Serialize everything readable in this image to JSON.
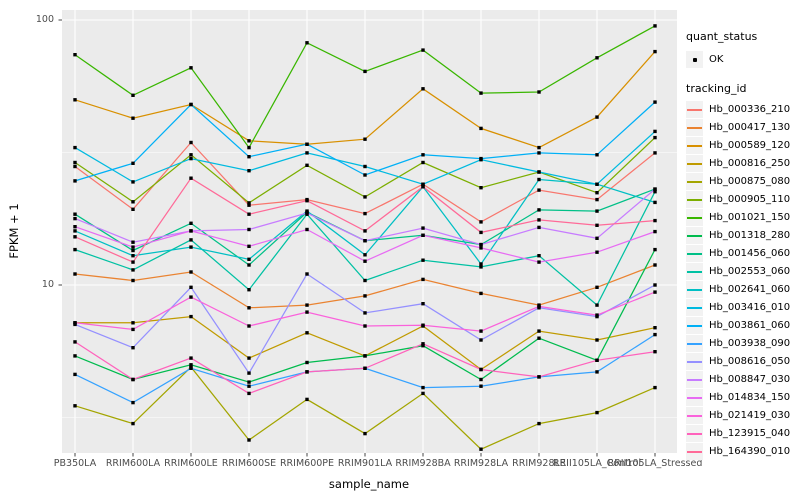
{
  "figure": {
    "background": "#FFFFFF",
    "panel_background": "#EBEBEB",
    "gridline_color": "#FFFFFF",
    "tick_mark_color": "#333333",
    "axis_text_color": "#4D4D4D",
    "title_text_color": "#000000",
    "point_color": "#000000"
  },
  "chart_data": {
    "type": "line",
    "title": "",
    "xlabel": "sample_name",
    "ylabel": "FPKM + 1",
    "y_scale": "log10",
    "y_ticks": [
      10,
      100
    ],
    "y_tick_labels": [
      "10",
      "100"
    ],
    "y_minor_ticks": [
      3.162,
      31.62
    ],
    "ylim": [
      2.3,
      110
    ],
    "grid": "white major and minor gridlines on gray panel",
    "legend_position": "right",
    "point_marker": "small black square",
    "categories": [
      "PB350LA",
      "RRIM600LA",
      "RRIM600LE",
      "RRIM600SE",
      "RRIM600PE",
      "RRIM901LA",
      "RRIM928BA",
      "RRIM928LA",
      "RRIM928LE",
      "RRII105LA_Control",
      "RRII105LA_Stressed"
    ],
    "series": [
      {
        "name": "Hb_000336_210",
        "color": "#F8766D",
        "values": [
          28,
          19.3,
          34.5,
          20,
          21,
          18.6,
          24,
          17.3,
          22.8,
          21,
          31.5
        ]
      },
      {
        "name": "Hb_000417_130",
        "color": "#EA8331",
        "values": [
          11,
          10.4,
          11.2,
          8.2,
          8.4,
          9.1,
          10.5,
          9.3,
          8.4,
          9.8,
          11.9
        ]
      },
      {
        "name": "Hb_000589_120",
        "color": "#D89000",
        "values": [
          50,
          42.6,
          48,
          35,
          34,
          35.5,
          55,
          39,
          33,
          43,
          76
        ]
      },
      {
        "name": "Hb_000816_250",
        "color": "#C09B00",
        "values": [
          7.2,
          7.2,
          7.6,
          5.3,
          6.6,
          5.4,
          7.0,
          4.8,
          6.7,
          6.2,
          6.9
        ]
      },
      {
        "name": "Hb_000875_080",
        "color": "#A3A500",
        "values": [
          3.5,
          3.0,
          4.9,
          2.6,
          3.7,
          2.75,
          3.9,
          2.4,
          3.0,
          3.3,
          4.1
        ]
      },
      {
        "name": "Hb_000905_110",
        "color": "#7CAE00",
        "values": [
          29,
          20.6,
          31,
          20.4,
          28.3,
          21.5,
          29,
          23.3,
          26.7,
          22.3,
          36
        ]
      },
      {
        "name": "Hb_001021_150",
        "color": "#39B600",
        "values": [
          74,
          52,
          66,
          33,
          82,
          64,
          77,
          53,
          53.5,
          72,
          95
        ]
      },
      {
        "name": "Hb_001318_280",
        "color": "#00BB4E",
        "values": [
          5.4,
          4.4,
          5.0,
          4.3,
          5.1,
          5.4,
          5.9,
          4.4,
          6.3,
          5.2,
          13.6
        ]
      },
      {
        "name": "Hb_001456_060",
        "color": "#00C087",
        "values": [
          18.5,
          13.5,
          17.1,
          11.9,
          18.8,
          14.7,
          15.4,
          14.2,
          19.2,
          19,
          23
        ]
      },
      {
        "name": "Hb_002553_060",
        "color": "#00C1A3",
        "values": [
          13.6,
          11.4,
          14.8,
          9.6,
          18.5,
          10.4,
          12.4,
          11.7,
          12.9,
          8.4,
          22.5
        ]
      },
      {
        "name": "Hb_002641_060",
        "color": "#00BFC4",
        "values": [
          16,
          12.9,
          13.9,
          12.5,
          19,
          13,
          23.5,
          12,
          25,
          24,
          20.5
        ]
      },
      {
        "name": "Hb_003416_010",
        "color": "#00BAE0",
        "values": [
          33,
          24.5,
          30,
          27,
          31.5,
          28,
          24,
          29.7,
          26.7,
          24,
          38
        ]
      },
      {
        "name": "Hb_003861_060",
        "color": "#00B0F6",
        "values": [
          24.7,
          28.8,
          48,
          30.5,
          34,
          26,
          31,
          30,
          31.5,
          31,
          49
        ]
      },
      {
        "name": "Hb_003938_090",
        "color": "#35A2FF",
        "values": [
          4.6,
          3.6,
          4.85,
          4.15,
          4.7,
          4.85,
          4.1,
          4.15,
          4.5,
          4.7,
          6.5
        ]
      },
      {
        "name": "Hb_008616_050",
        "color": "#9590FF",
        "values": [
          7.1,
          5.8,
          9.8,
          4.65,
          11,
          7.85,
          8.5,
          6.2,
          8.2,
          7.6,
          10
        ]
      },
      {
        "name": "Hb_008847_030",
        "color": "#C77CFF",
        "values": [
          17.8,
          14.5,
          16,
          16.2,
          18.7,
          14.7,
          16.4,
          14.2,
          16.5,
          15,
          23
        ]
      },
      {
        "name": "Hb_014834_150",
        "color": "#E76BF3",
        "values": [
          16.6,
          13.9,
          16,
          14,
          16.2,
          12.3,
          15.4,
          13.8,
          12.2,
          13.3,
          15.9
        ]
      },
      {
        "name": "Hb_021419_030",
        "color": "#FA62DB",
        "values": [
          7.2,
          6.8,
          9.0,
          7.0,
          7.9,
          7.0,
          7.05,
          6.7,
          8.3,
          7.7,
          9.4
        ]
      },
      {
        "name": "Hb_123915_040",
        "color": "#FF62BC",
        "values": [
          6.1,
          4.4,
          5.3,
          3.9,
          4.7,
          4.85,
          6.0,
          4.8,
          4.5,
          5.2,
          5.6
        ]
      },
      {
        "name": "Hb_164390_010",
        "color": "#FF6A98",
        "values": [
          15.2,
          12.2,
          25.3,
          18.5,
          20.8,
          16,
          23.5,
          15.8,
          17.6,
          16.8,
          17.5
        ]
      }
    ]
  },
  "legend": {
    "quant_status_title": "quant_status",
    "quant_status_items": [
      {
        "label": "OK",
        "marker": "black-point"
      }
    ],
    "tracking_title": "tracking_id"
  }
}
